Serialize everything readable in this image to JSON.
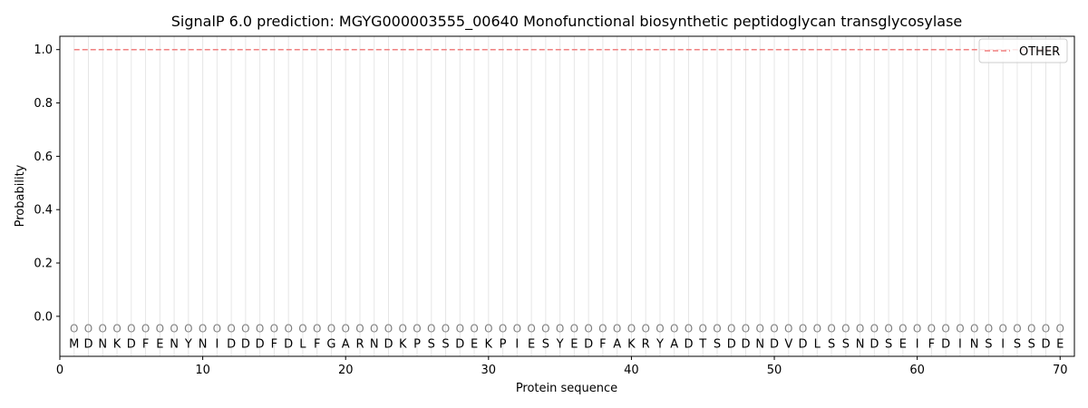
{
  "chart_data": {
    "type": "line",
    "title": "SignalP 6.0 prediction: MGYG000003555_00640 Monofunctional biosynthetic peptidoglycan transglycosylase",
    "xlabel": "Protein sequence",
    "ylabel": "Probability",
    "xlim": [
      0,
      71
    ],
    "ylim": [
      -0.15,
      1.05
    ],
    "xticks": [
      0,
      10,
      20,
      30,
      40,
      50,
      60,
      70
    ],
    "yticks": [
      0.0,
      0.2,
      0.4,
      0.6,
      0.8,
      1.0
    ],
    "ytick_labels": [
      "0.0",
      "0.2",
      "0.4",
      "0.6",
      "0.8",
      "1.0"
    ],
    "grid": "vertical lines at each residue",
    "legend_position": "top-right",
    "sequence": [
      "M",
      "D",
      "N",
      "K",
      "D",
      "F",
      "E",
      "N",
      "Y",
      "N",
      "I",
      "D",
      "D",
      "D",
      "F",
      "D",
      "L",
      "F",
      "G",
      "A",
      "R",
      "N",
      "D",
      "K",
      "P",
      "S",
      "S",
      "D",
      "E",
      "K",
      "P",
      "I",
      "E",
      "S",
      "Y",
      "E",
      "D",
      "F",
      "A",
      "K",
      "R",
      "Y",
      "A",
      "D",
      "T",
      "S",
      "D",
      "D",
      "N",
      "D",
      "V",
      "D",
      "L",
      "S",
      "S",
      "N",
      "D",
      "S",
      "E",
      "I",
      "F",
      "D",
      "I",
      "N",
      "S",
      "I",
      "S",
      "S",
      "D",
      "E"
    ],
    "region_marker": "O",
    "region_marker_y": -0.045,
    "residue_label_y": -0.1,
    "series": [
      {
        "name": "OTHER",
        "color": "#f08080",
        "style": "dashed",
        "x_start": 1,
        "x_end": 70,
        "values": [
          1,
          1,
          1,
          1,
          1,
          1,
          1,
          1,
          1,
          1,
          1,
          1,
          1,
          1,
          1,
          1,
          1,
          1,
          1,
          1,
          1,
          1,
          1,
          1,
          1,
          1,
          1,
          1,
          1,
          1,
          1,
          1,
          1,
          1,
          1,
          1,
          1,
          1,
          1,
          1,
          1,
          1,
          1,
          1,
          1,
          1,
          1,
          1,
          1,
          1,
          1,
          1,
          1,
          1,
          1,
          1,
          1,
          1,
          1,
          1,
          1,
          1,
          1,
          1,
          1,
          1,
          1,
          1,
          1,
          1
        ]
      }
    ]
  }
}
